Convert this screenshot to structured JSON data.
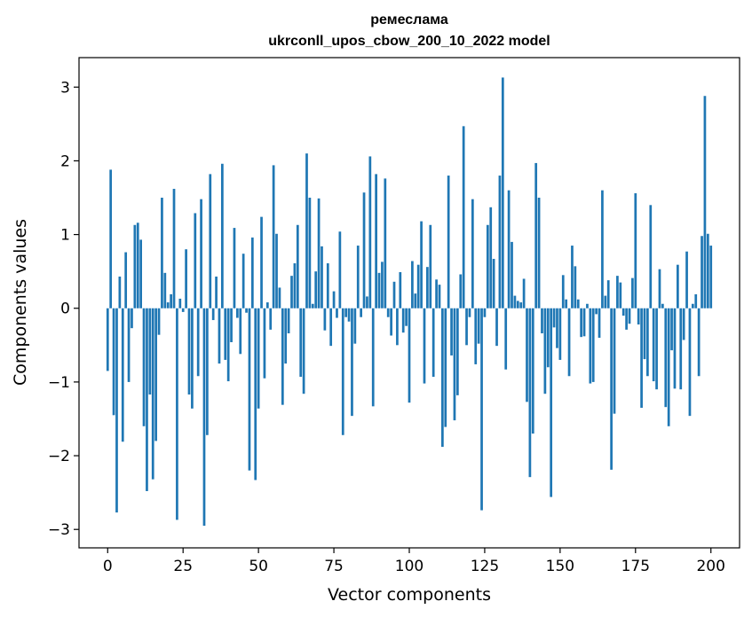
{
  "chart_data": {
    "type": "bar",
    "title_line1": "ремеслама",
    "title_line2": "ukrconll_upos_cbow_200_10_2022 model",
    "xlabel": "Vector components",
    "ylabel": "Components values",
    "xlim": [
      -9.5,
      209.5
    ],
    "ylim": [
      -3.25,
      3.4
    ],
    "xticks": [
      0,
      25,
      50,
      75,
      100,
      125,
      150,
      175,
      200
    ],
    "yticks": [
      -3,
      -2,
      -1,
      0,
      1,
      2,
      3
    ],
    "bar_color": "#1f77b4",
    "values": [
      -0.85,
      1.88,
      -1.45,
      -2.77,
      0.43,
      -1.81,
      0.76,
      -1.0,
      -0.27,
      1.13,
      1.16,
      0.93,
      -1.6,
      -2.48,
      -1.17,
      -2.32,
      -1.8,
      -0.36,
      1.5,
      0.48,
      0.08,
      0.19,
      1.62,
      -2.87,
      0.13,
      -0.05,
      0.8,
      -1.17,
      -1.36,
      1.29,
      -0.92,
      1.48,
      -2.95,
      -1.72,
      1.82,
      -0.16,
      0.43,
      -0.75,
      1.96,
      -0.7,
      -0.99,
      -0.46,
      1.09,
      -0.13,
      -0.62,
      0.74,
      -0.06,
      -2.2,
      0.96,
      -2.33,
      -1.36,
      1.24,
      -0.95,
      0.08,
      -0.29,
      1.94,
      1.01,
      0.28,
      -1.31,
      -0.75,
      -0.34,
      0.44,
      0.61,
      1.13,
      -0.93,
      -1.16,
      2.1,
      1.5,
      0.06,
      0.5,
      1.49,
      0.84,
      -0.3,
      0.61,
      -0.51,
      0.23,
      -0.13,
      1.04,
      -1.72,
      -0.12,
      -0.18,
      -1.46,
      -0.48,
      0.85,
      -0.12,
      1.57,
      0.16,
      2.06,
      -1.33,
      1.82,
      0.48,
      0.63,
      1.76,
      -0.12,
      -0.37,
      0.36,
      -0.5,
      0.49,
      -0.33,
      -0.24,
      -1.28,
      0.64,
      0.2,
      0.59,
      1.18,
      -1.02,
      0.56,
      1.13,
      -0.93,
      0.39,
      0.32,
      -1.88,
      -1.61,
      1.8,
      -0.64,
      -1.52,
      -1.18,
      0.46,
      2.47,
      -0.5,
      -0.12,
      1.48,
      -0.76,
      -0.48,
      -2.74,
      -0.12,
      1.13,
      1.37,
      0.67,
      -0.51,
      1.8,
      3.13,
      -0.83,
      1.6,
      0.9,
      0.17,
      0.1,
      0.08,
      0.4,
      -1.27,
      -2.29,
      -1.7,
      1.97,
      1.5,
      -0.34,
      -1.16,
      -0.8,
      -2.56,
      -0.26,
      -0.54,
      -0.7,
      0.45,
      0.12,
      -0.92,
      0.85,
      0.57,
      0.12,
      -0.39,
      -0.38,
      0.06,
      -1.02,
      -1.0,
      -0.08,
      -0.4,
      1.6,
      0.17,
      0.38,
      -2.19,
      -1.43,
      0.44,
      0.35,
      -0.1,
      -0.29,
      -0.21,
      0.41,
      1.56,
      -0.22,
      -1.35,
      -0.69,
      -0.92,
      1.4,
      -0.99,
      -1.1,
      0.53,
      0.06,
      -1.34,
      -1.6,
      -0.57,
      -1.09,
      0.59,
      -1.1,
      -0.43,
      0.77,
      -1.46,
      0.06,
      0.19,
      -0.92,
      0.98,
      2.88,
      1.01,
      0.85
    ]
  }
}
